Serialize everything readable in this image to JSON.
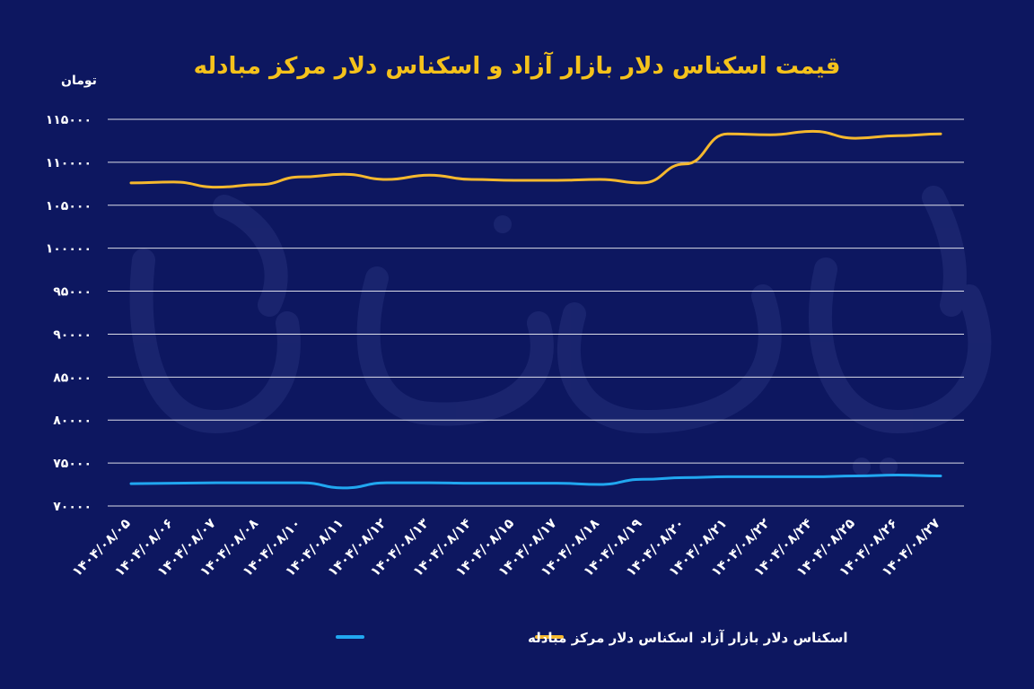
{
  "chart_data": {
    "type": "line",
    "title": "قیمت اسکناس دلار بازار آزاد و اسکناس دلار مرکز مبادله",
    "ylabel": "تومان",
    "xlabel": "",
    "ylim": [
      70000,
      115000
    ],
    "yticks": [
      70000,
      75000,
      80000,
      85000,
      90000,
      95000,
      100000,
      105000,
      110000,
      115000
    ],
    "ytick_labels": [
      "۷۰۰۰۰",
      "۷۵۰۰۰",
      "۸۰۰۰۰",
      "۸۵۰۰۰",
      "۹۰۰۰۰",
      "۹۵۰۰۰",
      "۱۰۰۰۰۰",
      "۱۰۵۰۰۰",
      "۱۱۰۰۰۰",
      "۱۱۵۰۰۰"
    ],
    "categories": [
      "۱۴۰۴/۰۸/۰۵",
      "۱۴۰۴/۰۸/۰۶",
      "۱۴۰۴/۰۸/۰۷",
      "۱۴۰۴/۰۸/۰۸",
      "۱۴۰۴/۰۸/۱۰",
      "۱۴۰۴/۰۸/۱۱",
      "۱۴۰۴/۰۸/۱۲",
      "۱۴۰۴/۰۸/۱۳",
      "۱۴۰۴/۰۸/۱۴",
      "۱۴۰۴/۰۸/۱۵",
      "۱۴۰۴/۰۸/۱۷",
      "۱۴۰۴/۰۸/۱۸",
      "۱۴۰۴/۰۸/۱۹",
      "۱۴۰۴/۰۸/۲۰",
      "۱۴۰۴/۰۸/۲۱",
      "۱۴۰۴/۰۸/۲۲",
      "۱۴۰۴/۰۸/۲۴",
      "۱۴۰۴/۰۸/۲۵",
      "۱۴۰۴/۰۸/۲۶",
      "۱۴۰۴/۰۸/۲۷"
    ],
    "series": [
      {
        "name": "اسکناس دلار بازار آزاد",
        "color": "#f5b82e",
        "values": [
          107600,
          107700,
          107100,
          107400,
          108300,
          108600,
          108000,
          108500,
          108000,
          107900,
          107900,
          108000,
          107600,
          109800,
          113300,
          113200,
          113600,
          112800,
          113100,
          113300
        ]
      },
      {
        "name": "اسکناس دلار مرکز مبادله",
        "color": "#21a7f0",
        "values": [
          72600,
          72650,
          72700,
          72700,
          72700,
          72100,
          72700,
          72700,
          72650,
          72650,
          72650,
          72500,
          73100,
          73300,
          73400,
          73400,
          73400,
          73500,
          73600,
          73500
        ]
      }
    ],
    "legend_position": "bottom",
    "grid": true
  },
  "watermark": "دنیای اقتصاد"
}
